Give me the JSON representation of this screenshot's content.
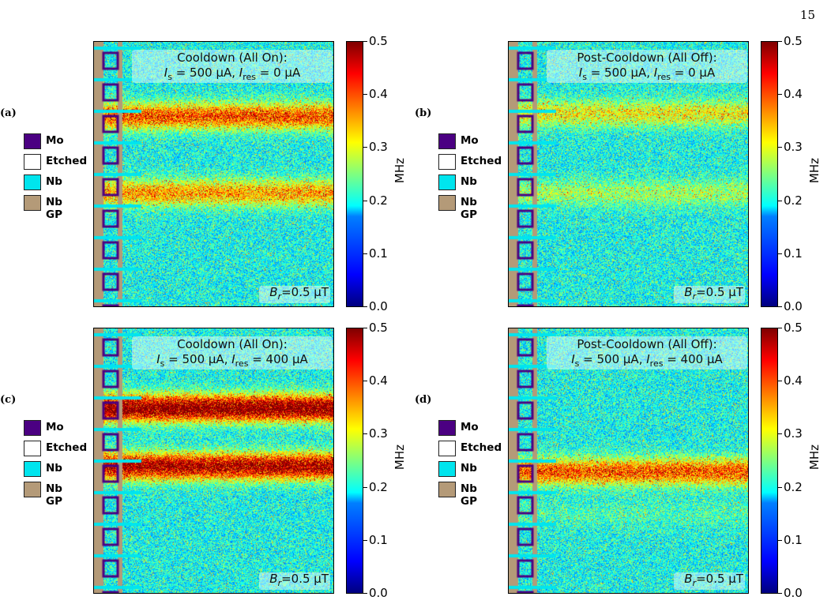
{
  "page_number": "15",
  "legend": [
    {
      "label": "Mo",
      "color": "#4b0082"
    },
    {
      "label": "Etched",
      "color": "#ffffff"
    },
    {
      "label": "Nb",
      "color": "#00e5ee"
    },
    {
      "label": "Nb GP",
      "color": "#b49a78"
    }
  ],
  "colorbar": {
    "unit": "MHz",
    "ticks": [
      "0.0",
      "0.1",
      "0.2",
      "0.3",
      "0.4",
      "0.5"
    ],
    "range": [
      0.0,
      0.5
    ],
    "colormap": "jet"
  },
  "panels": [
    {
      "label": "(a)",
      "title_line1": "Cooldown (All On):",
      "title_line2": "I_s = 500 μA, I_res = 0 μA",
      "is_text": "s",
      "ires_val": "0",
      "field": "B_r=0.5 μT"
    },
    {
      "label": "(b)",
      "title_line1": "Post-Cooldown (All Off):",
      "title_line2": "I_s = 500 μA, I_res = 0 μA",
      "ires_val": "0",
      "field": "B_r=0.5 μT"
    },
    {
      "label": "(c)",
      "title_line1": "Cooldown (All On):",
      "title_line2": "I_s = 500 μA, I_res = 400 μA",
      "ires_val": "400",
      "field": "B_r=0.5 μT"
    },
    {
      "label": "(d)",
      "title_line1": "Post-Cooldown (All Off):",
      "title_line2": "I_s = 500 μA, I_res = 400 μA",
      "ires_val": "400",
      "field": "B_r=0.5 μT"
    }
  ],
  "chart_data": [
    {
      "type": "heatmap",
      "panel": "(a)",
      "title": "Cooldown (All On): I_s = 500 μA, I_res = 0 μA",
      "annotation": "B_r=0.5 μT",
      "colorbar_label": "MHz",
      "zlim": [
        0.0,
        0.5
      ],
      "colormap": "jet",
      "bands": [
        {
          "pos": 0.28,
          "level": 0.35
        },
        {
          "pos": 0.57,
          "level": 0.3
        }
      ]
    },
    {
      "type": "heatmap",
      "panel": "(b)",
      "title": "Post-Cooldown (All Off): I_s = 500 μA, I_res = 0 μA",
      "annotation": "B_r=0.5 μT",
      "colorbar_label": "MHz",
      "zlim": [
        0.0,
        0.5
      ],
      "colormap": "jet",
      "bands": [
        {
          "pos": 0.27,
          "level": 0.25
        },
        {
          "pos": 0.57,
          "level": 0.2
        }
      ]
    },
    {
      "type": "heatmap",
      "panel": "(c)",
      "title": "Cooldown (All On): I_s = 500 μA, I_res = 400 μA",
      "annotation": "B_r=0.5 μT",
      "colorbar_label": "MHz",
      "zlim": [
        0.0,
        0.5
      ],
      "colormap": "jet",
      "bands": [
        {
          "pos": 0.3,
          "level": 0.48
        },
        {
          "pos": 0.52,
          "level": 0.45
        }
      ]
    },
    {
      "type": "heatmap",
      "panel": "(d)",
      "title": "Post-Cooldown (All Off): I_s = 500 μA, I_res = 400 μA",
      "annotation": "B_r=0.5 μT",
      "colorbar_label": "MHz",
      "zlim": [
        0.0,
        0.5
      ],
      "colormap": "jet",
      "bands": [
        {
          "pos": 0.54,
          "level": 0.35
        },
        {
          "pos": 0.7,
          "level": 0.15
        }
      ]
    }
  ]
}
